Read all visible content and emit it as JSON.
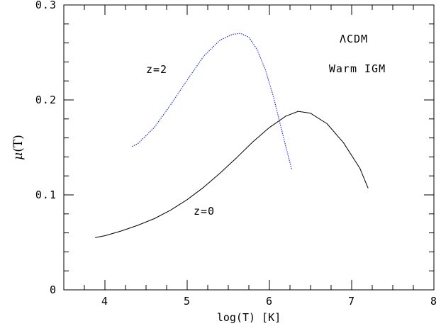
{
  "chart_data": {
    "type": "line",
    "xlabel": "log(T) [K]",
    "ylabel_mu": "μ",
    "ylabel_rest": "(T)",
    "xlim": [
      3.5,
      8
    ],
    "ylim": [
      0,
      0.3
    ],
    "x_ticks": [
      {
        "value": 4,
        "label": "4"
      },
      {
        "value": 5,
        "label": "5"
      },
      {
        "value": 6,
        "label": "6"
      },
      {
        "value": 7,
        "label": "7"
      },
      {
        "value": 8,
        "label": "8"
      }
    ],
    "y_ticks": [
      {
        "value": 0,
        "label": "0"
      },
      {
        "value": 0.1,
        "label": "0.1"
      },
      {
        "value": 0.2,
        "label": "0.2"
      },
      {
        "value": 0.3,
        "label": "0.3"
      }
    ],
    "x_minor_step": 0.25,
    "y_minor_step": 0.02,
    "grid": false,
    "series": [
      {
        "name": "z=0",
        "color": "#000000",
        "style": "solid",
        "x": [
          3.88,
          4.0,
          4.2,
          4.4,
          4.6,
          4.8,
          5.0,
          5.2,
          5.4,
          5.6,
          5.8,
          6.0,
          6.2,
          6.35,
          6.5,
          6.7,
          6.9,
          7.1,
          7.2
        ],
        "y": [
          0.055,
          0.057,
          0.062,
          0.068,
          0.075,
          0.084,
          0.095,
          0.108,
          0.123,
          0.139,
          0.156,
          0.171,
          0.183,
          0.188,
          0.186,
          0.175,
          0.155,
          0.128,
          0.107
        ]
      },
      {
        "name": "z=2",
        "color": "#1a2fd6",
        "style": "dotted",
        "x": [
          4.33,
          4.4,
          4.6,
          4.8,
          5.0,
          5.2,
          5.4,
          5.55,
          5.65,
          5.75,
          5.85,
          5.95,
          6.05,
          6.15,
          6.27
        ],
        "y": [
          0.151,
          0.154,
          0.171,
          0.195,
          0.221,
          0.246,
          0.263,
          0.269,
          0.27,
          0.266,
          0.253,
          0.232,
          0.203,
          0.168,
          0.127
        ]
      }
    ],
    "annotations": {
      "model": "ΛCDM",
      "scenario": "Warm IGM",
      "z2_label": "z=2",
      "z0_label": "z=0"
    }
  }
}
